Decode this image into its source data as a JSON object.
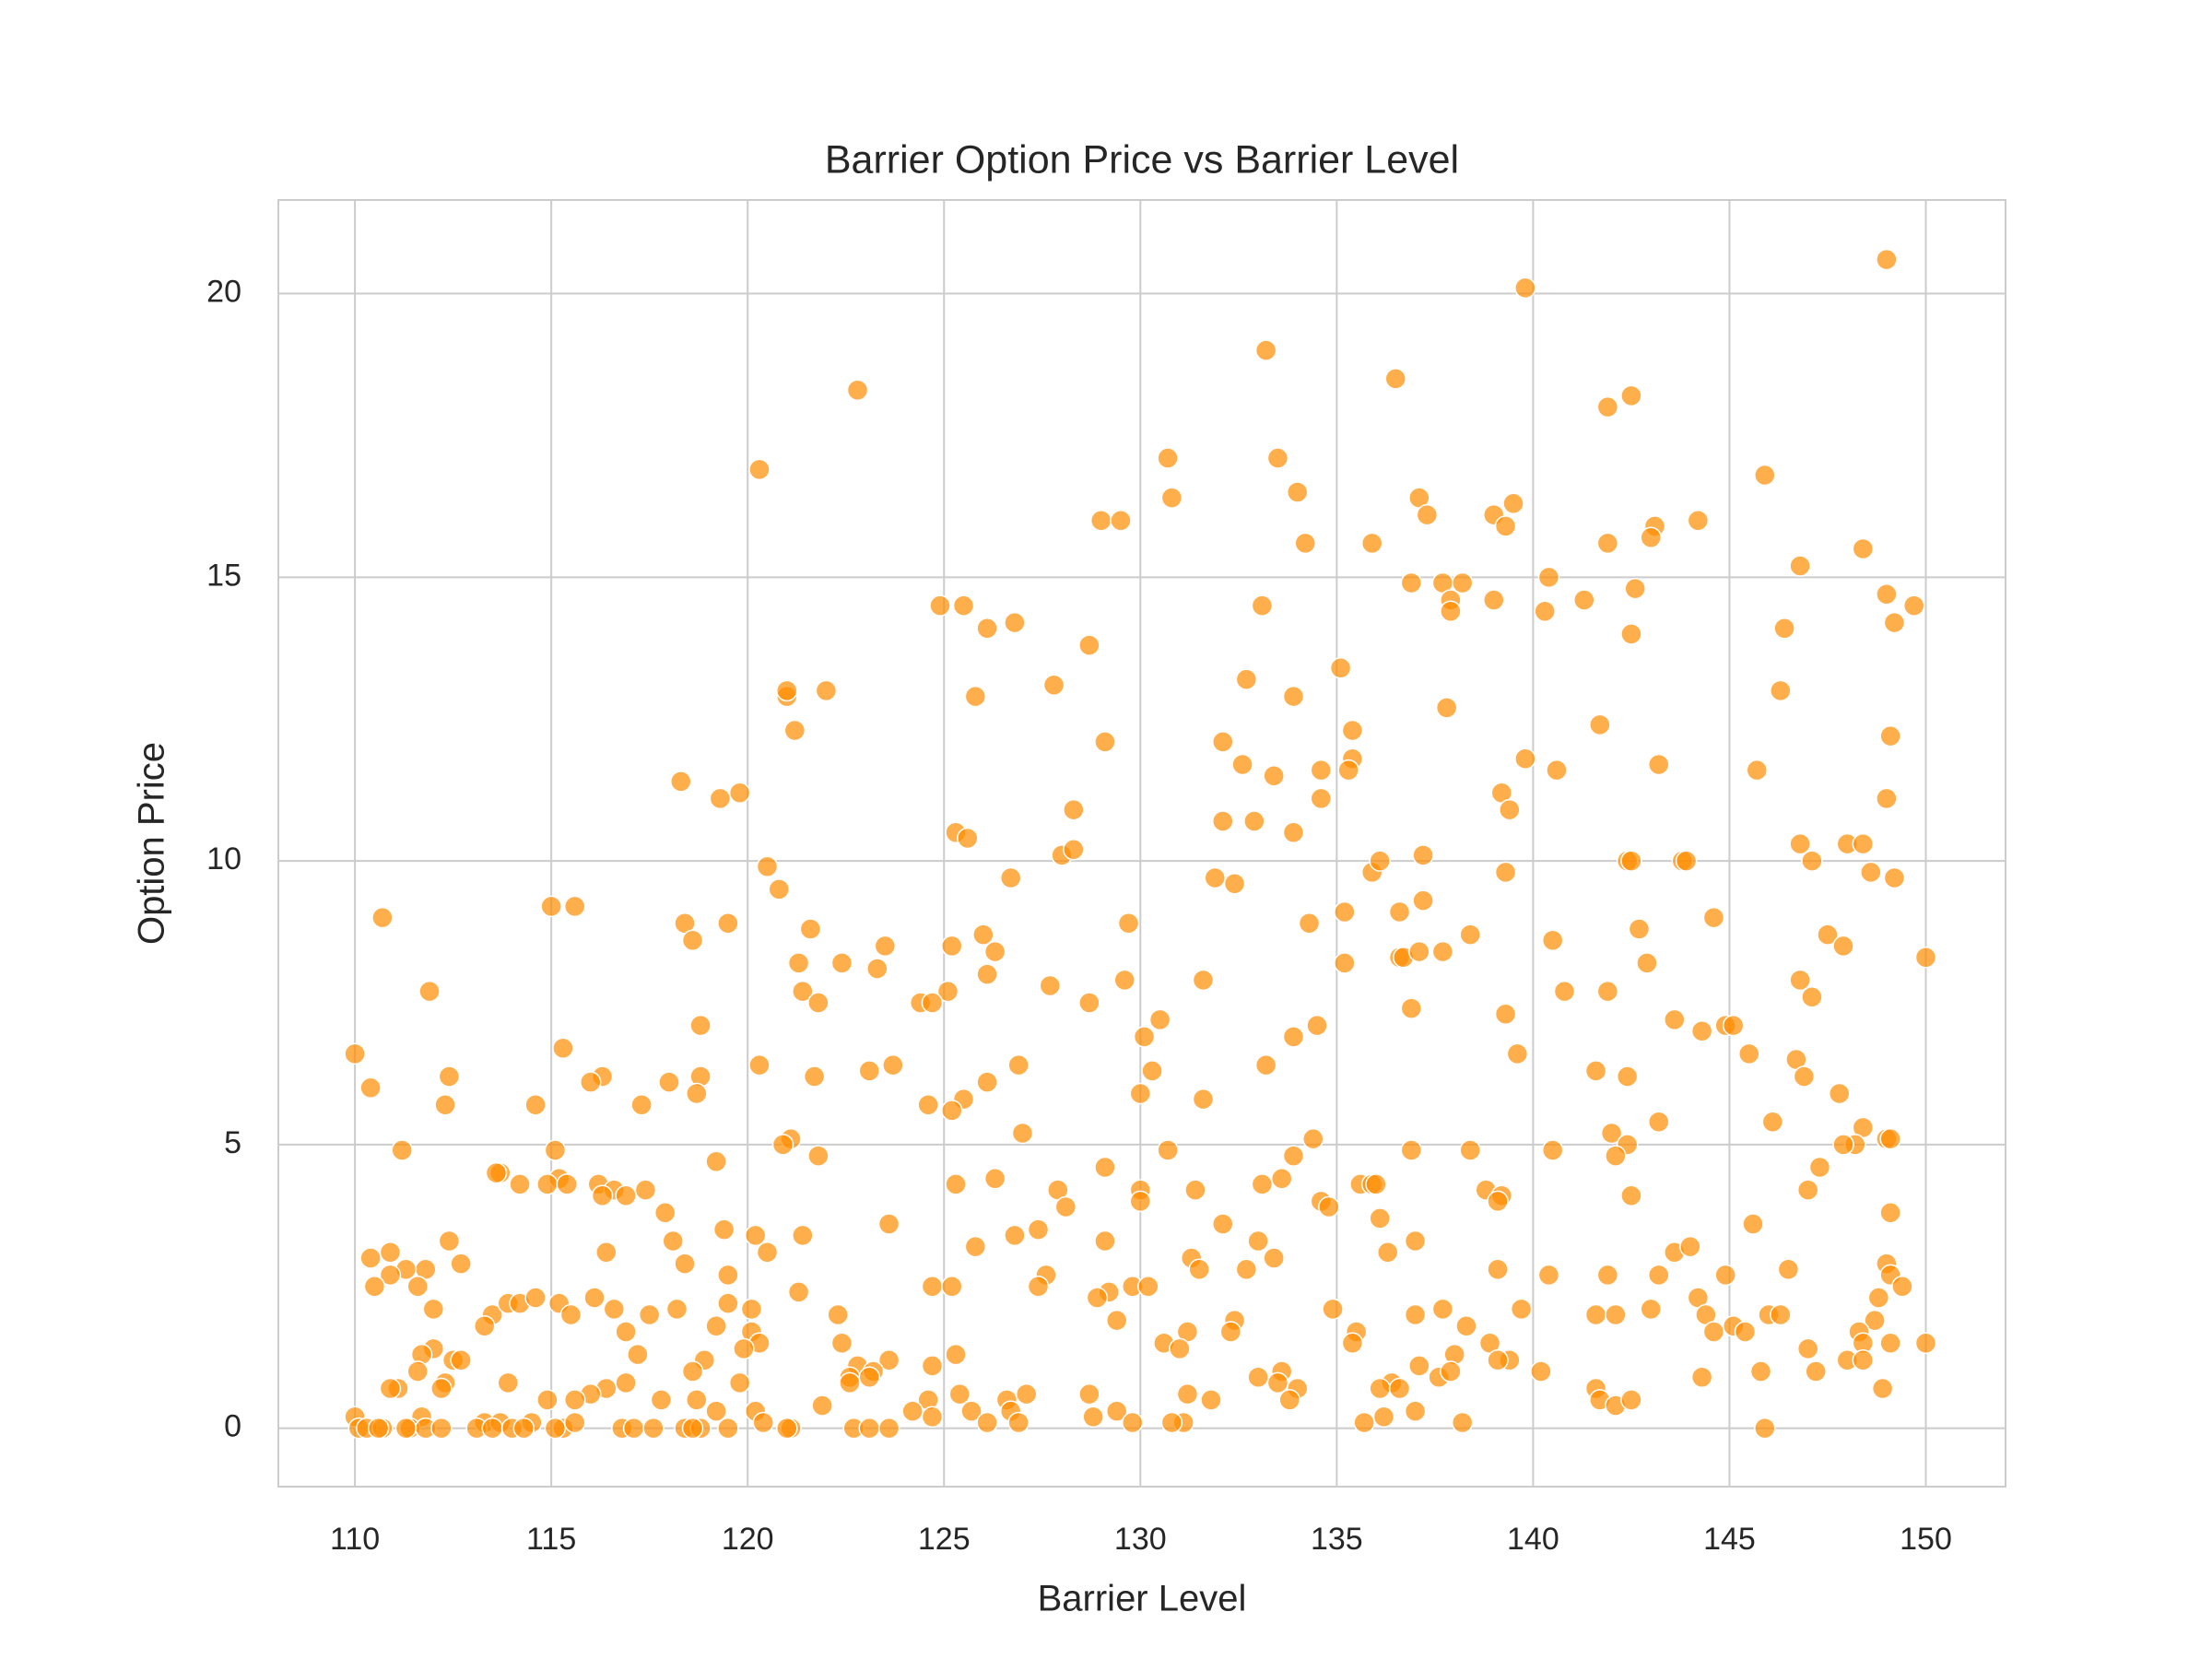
{
  "chart_data": {
    "type": "scatter",
    "title": "Barrier Option Price vs Barrier Level",
    "x_label": "Barrier Level",
    "y_label": "Option Price",
    "color": "#ff8c00",
    "grid": true,
    "xlim": [
      108.05,
      152.03
    ],
    "ylim": [
      -1.03,
      21.65
    ],
    "xticks": [
      110,
      115,
      120,
      125,
      130,
      135,
      140,
      145,
      150
    ],
    "yticks": [
      0,
      5,
      10,
      15,
      20
    ],
    "x": [
      149.0,
      139.8,
      133.2,
      136.5,
      122.8,
      142.5,
      141.9,
      130.7,
      133.5,
      120.3,
      145.9,
      130.8,
      134.0,
      137.1,
      137.3,
      139.0,
      139.5,
      139.3,
      129.0,
      129.5,
      143.1,
      143.0,
      144.2,
      134.2,
      135.9,
      141.9,
      148.4,
      146.8,
      136.9,
      137.7,
      138.2,
      140.4,
      142.6,
      149.0,
      139.0,
      141.3,
      137.9,
      137.9,
      124.9,
      125.5,
      133.1,
      140.3,
      149.7,
      149.2,
      126.1,
      126.8,
      146.4,
      142.5,
      128.7,
      135.1,
      132.7,
      127.8,
      121.0,
      121.0,
      122.0,
      125.8,
      133.9,
      146.3,
      137.8,
      121.2,
      141.7,
      135.4,
      129.1,
      132.1,
      149.1,
      135.4,
      132.6,
      139.8,
      143.2,
      140.6,
      134.6,
      135.3,
      133.4,
      145.7,
      118.3,
      119.3,
      119.8,
      139.2,
      134.6,
      149.0,
      139.4,
      128.3,
      132.1,
      132.9,
      125.3,
      125.6,
      133.9,
      146.8,
      148.0,
      148.4,
      128.0,
      128.3,
      137.2,
      142.4,
      142.5,
      143.8,
      143.9,
      147.1,
      120.5,
      135.9,
      136.1,
      139.3,
      148.6,
      131.9,
      132.4,
      126.7,
      149.2,
      120.8,
      137.2,
      135.2,
      136.6,
      115.0,
      115.6,
      110.7,
      144.6,
      119.5,
      129.7,
      118.4,
      121.6,
      134.3,
      142.7,
      118.6,
      126.0,
      138.4,
      147.5,
      140.5,
      123.5,
      125.2,
      126.3,
      136.6,
      136.7,
      137.1,
      137.7,
      147.9,
      150.0,
      121.3,
      122.4,
      123.3,
      135.2,
      142.9,
      126.1,
      129.6,
      131.6,
      146.8,
      127.7,
      111.9,
      121.4,
      125.1,
      140.8,
      141.9,
      147.1,
      121.8,
      124.4,
      124.7,
      128.7,
      136.9,
      139.3,
      130.5,
      118.8,
      134.5,
      143.6,
      144.9,
      145.1,
      144.3,
      130.1,
      133.9,
      115.3,
      110.0,
      139.6,
      145.5,
      120.3,
      123.7,
      126.9,
      133.2,
      146.7,
      130.3,
      123.1,
      116.3,
      112.4,
      118.8,
      121.7,
      141.6,
      142.4,
      146.9,
      116.0,
      126.1,
      118.0,
      110.4,
      118.7,
      130.0,
      147.8,
      125.5,
      131.6,
      112.3,
      114.6,
      117.3,
      124.6,
      125.2,
      143.2,
      146.1,
      148.4,
      142.0,
      127.0,
      121.1,
      120.9,
      134.4,
      142.4,
      149.0,
      149.1,
      148.2,
      147.9,
      115.1,
      130.7,
      138.4,
      140.5,
      136.9,
      142.1,
      111.2,
      121.8,
      133.9,
      119.2,
      129.1,
      147.3,
      113.7,
      113.6,
      115.2,
      114.9,
      116.2,
      115.4,
      114.2,
      125.3,
      126.3,
      133.1,
      133.6,
      135.6,
      135.9,
      136.0,
      138.8,
      116.6,
      117.4,
      116.3,
      116.9,
      127.9,
      130.0,
      131.4,
      139.2,
      139.1,
      142.5,
      147.0,
      130.0,
      134.6,
      128.1,
      134.8,
      117.9,
      136.1,
      149.1,
      123.6,
      132.1,
      145.6,
      119.4,
      127.4,
      121.4,
      120.2,
      126.8,
      133.0,
      137.0,
      129.1,
      112.4,
      118.1,
      125.8,
      116.4,
      110.9,
      120.5,
      136.3,
      143.6,
      144.0,
      110.4,
      111.8,
      112.7,
      118.4,
      131.3,
      133.4,
      149.0,
      146.5,
      111.3,
      110.9,
      119.5,
      127.6,
      131.5,
      132.7,
      139.1,
      141.9,
      143.2,
      144.9,
      149.1,
      140.4,
      110.5,
      111.6,
      124.7,
      125.2,
      127.4,
      129.8,
      130.2,
      129.2,
      149.4,
      121.3,
      148.8,
      128.9,
      144.2,
      112.0,
      113.5,
      113.9,
      114.2,
      114.6,
      115.2,
      115.5,
      116.1,
      116.6,
      117.5,
      118.2,
      119.5,
      120.1,
      122.3,
      134.9,
      137.0,
      137.7,
      139.7,
      141.6,
      142.1,
      143.0,
      144.4,
      146.0,
      146.3,
      148.7,
      129.4,
      132.4,
      119.2,
      120.1,
      113.3,
      131.2,
      132.3,
      135.5,
      138.3,
      145.1,
      145.4,
      148.3,
      144.6,
      116.9,
      135.4,
      138.9,
      149.1,
      150.0,
      122.4,
      120.3,
      119.9,
      130.6,
      131.0,
      148.4,
      112.0,
      111.7,
      117.2,
      125.3,
      147.0,
      138.0,
      139.4,
      139.1,
      112.5,
      112.7,
      118.9,
      123.6,
      122.8,
      124.7,
      137.1,
      148.0,
      148.4,
      111.6,
      118.6,
      123.2,
      122.6,
      123.1,
      133.0,
      133.6,
      137.6,
      137.9,
      140.2,
      145.8,
      147.2,
      122.6,
      144.3,
      136.4,
      133.5,
      113.9,
      111.1,
      112.3,
      116.4,
      116.9,
      110.9,
      112.2,
      119.8,
      127.1,
      128.7,
      131.2,
      134.0,
      136.1,
      136.6,
      141.6,
      148.9,
      125.4,
      126.6,
      116.0,
      121.9,
      117.8,
      118.7,
      115.6,
      114.9,
      124.6,
      131.8,
      133.8,
      141.7,
      142.1,
      142.5,
      126.7,
      129.4,
      125.7,
      136.2,
      137.0,
      110.0,
      111.7,
      119.2,
      120.2,
      124.2,
      124.7,
      128.8,
      120.4,
      126.1,
      126.9,
      129.8,
      131.1,
      130.8,
      135.7,
      138.2,
      145.9,
      114.5,
      115.3,
      113.3,
      113.7,
      115.6,
      110.1,
      110.3,
      110.7,
      111.4,
      111.8,
      112.2,
      113.1,
      113.5,
      114.0,
      115.1,
      116.8,
      117.1,
      117.6,
      118.4,
      118.8,
      119.5,
      121.1,
      121.0,
      122.7,
      123.1,
      123.6,
      110.6,
      111.3,
      114.3,
      118.6
    ],
    "values": [
      20.6,
      20.1,
      19.0,
      18.5,
      18.3,
      18.2,
      18.0,
      17.1,
      17.1,
      16.9,
      16.8,
      16.4,
      16.5,
      16.4,
      16.1,
      16.1,
      16.3,
      15.9,
      16.0,
      16.0,
      15.9,
      15.7,
      16.0,
      15.6,
      15.6,
      15.6,
      15.5,
      15.2,
      14.9,
      14.9,
      14.9,
      15.0,
      14.8,
      14.7,
      14.6,
      14.6,
      14.6,
      14.4,
      14.5,
      14.5,
      14.5,
      14.4,
      14.5,
      14.2,
      14.1,
      14.2,
      14.1,
      14.0,
      13.8,
      13.4,
      13.2,
      13.1,
      12.9,
      13.0,
      13.0,
      12.9,
      12.9,
      13.0,
      12.7,
      12.3,
      12.4,
      12.3,
      12.1,
      12.1,
      12.2,
      11.8,
      11.7,
      11.8,
      11.7,
      11.6,
      11.6,
      11.6,
      11.5,
      11.6,
      11.4,
      11.1,
      11.2,
      11.2,
      11.1,
      11.1,
      10.9,
      10.9,
      10.7,
      10.7,
      10.5,
      10.4,
      10.5,
      10.3,
      10.3,
      10.3,
      10.1,
      10.2,
      10.1,
      10.0,
      10.0,
      10.0,
      10.0,
      10.0,
      9.9,
      9.8,
      10.0,
      9.8,
      9.8,
      9.7,
      9.6,
      9.7,
      9.7,
      9.5,
      9.3,
      9.1,
      9.1,
      9.2,
      9.2,
      9.0,
      9.0,
      8.9,
      8.9,
      8.9,
      8.8,
      8.9,
      8.8,
      8.6,
      8.7,
      8.7,
      8.7,
      8.6,
      8.5,
      8.5,
      8.4,
      8.3,
      8.3,
      8.4,
      8.4,
      8.5,
      8.3,
      8.2,
      8.2,
      8.1,
      8.2,
      8.2,
      8.0,
      7.9,
      7.9,
      7.9,
      7.8,
      7.7,
      7.7,
      7.7,
      7.7,
      7.7,
      7.6,
      7.5,
      7.5,
      7.5,
      7.5,
      7.4,
      7.3,
      7.2,
      7.1,
      7.1,
      7.2,
      7.1,
      7.1,
      7.0,
      6.9,
      6.9,
      6.7,
      6.6,
      6.6,
      6.6,
      6.4,
      6.4,
      6.4,
      6.4,
      6.5,
      6.3,
      6.3,
      6.2,
      6.2,
      6.2,
      6.2,
      6.3,
      6.2,
      6.2,
      6.1,
      6.1,
      6.1,
      6.0,
      5.9,
      5.9,
      5.9,
      5.8,
      5.8,
      5.7,
      5.7,
      5.7,
      5.7,
      5.6,
      5.4,
      5.4,
      5.3,
      5.2,
      5.2,
      5.1,
      5.0,
      5.1,
      5.0,
      5.1,
      5.1,
      5.0,
      5.0,
      4.9,
      4.9,
      4.9,
      4.9,
      4.9,
      4.8,
      4.9,
      4.8,
      4.8,
      4.7,
      4.6,
      4.6,
      4.5,
      4.5,
      4.4,
      4.3,
      4.3,
      4.3,
      4.3,
      4.3,
      4.4,
      4.3,
      4.4,
      4.3,
      4.3,
      4.3,
      4.2,
      4.2,
      4.2,
      4.1,
      4.1,
      4.2,
      4.2,
      4.2,
      4.1,
      4.0,
      4.1,
      4.2,
      4.0,
      4.0,
      3.9,
      3.9,
      3.8,
      3.7,
      3.8,
      3.6,
      3.6,
      3.6,
      3.5,
      3.5,
      3.4,
      3.4,
      3.4,
      3.3,
      3.3,
      3.3,
      3.3,
      3.3,
      3.2,
      3.1,
      3.1,
      3.1,
      3.1,
      3.1,
      3.2,
      3.0,
      2.8,
      2.9,
      2.9,
      3.0,
      3.0,
      2.9,
      2.8,
      2.8,
      2.7,
      2.7,
      2.7,
      2.8,
      2.8,
      2.8,
      2.7,
      2.7,
      2.7,
      2.7,
      2.7,
      2.5,
      2.5,
      2.5,
      2.5,
      2.5,
      2.5,
      2.5,
      2.4,
      2.5,
      2.4,
      2.3,
      2.3,
      2.3,
      2.1,
      2.0,
      2.2,
      2.2,
      2.3,
      2.2,
      2.0,
      2.3,
      2.1,
      2.0,
      2.1,
      2.2,
      2.1,
      2.0,
      2.1,
      2.0,
      2.1,
      2.1,
      2.0,
      2.0,
      2.1,
      2.0,
      2.0,
      2.0,
      1.9,
      1.9,
      1.9,
      1.8,
      1.7,
      1.8,
      1.7,
      1.7,
      1.7,
      1.8,
      1.8,
      1.7,
      1.7,
      1.7,
      1.7,
      1.5,
      1.5,
      1.5,
      1.5,
      1.5,
      1.5,
      1.4,
      1.5,
      1.4,
      1.5,
      1.4,
      1.3,
      1.3,
      1.3,
      1.4,
      1.3,
      1.2,
      1.2,
      1.2,
      1.2,
      1.2,
      1.2,
      1.1,
      1.1,
      1.1,
      1.2,
      1.2,
      1.0,
      1.0,
      1.0,
      0.9,
      0.9,
      0.9,
      1.0,
      0.9,
      1.0,
      1.0,
      1.0,
      1.0,
      0.8,
      0.9,
      0.8,
      0.8,
      0.8,
      0.7,
      0.8,
      0.7,
      0.8,
      0.7,
      0.7,
      0.8,
      0.6,
      0.6,
      0.6,
      0.7,
      0.7,
      0.7,
      0.7,
      0.7,
      0.6,
      0.5,
      0.6,
      0.4,
      0.5,
      0.5,
      0.5,
      0.5,
      0.5,
      0.5,
      0.5,
      0.5,
      0.4,
      0.5,
      0.3,
      0.3,
      0.3,
      0.2,
      0.3,
      0.2,
      0.2,
      0.3,
      0.3,
      0.3,
      0.2,
      0.2,
      0.1,
      0.1,
      0.1,
      0.1,
      0.1,
      0.1,
      0.1,
      0.1,
      0,
      0.1,
      0,
      0.1,
      0.1,
      0.1,
      0,
      0,
      0,
      0,
      0,
      0,
      0,
      0,
      0,
      0,
      0,
      0,
      0,
      0,
      0,
      0,
      0,
      0,
      0,
      0,
      0,
      0,
      0,
      0,
      0
    ]
  }
}
